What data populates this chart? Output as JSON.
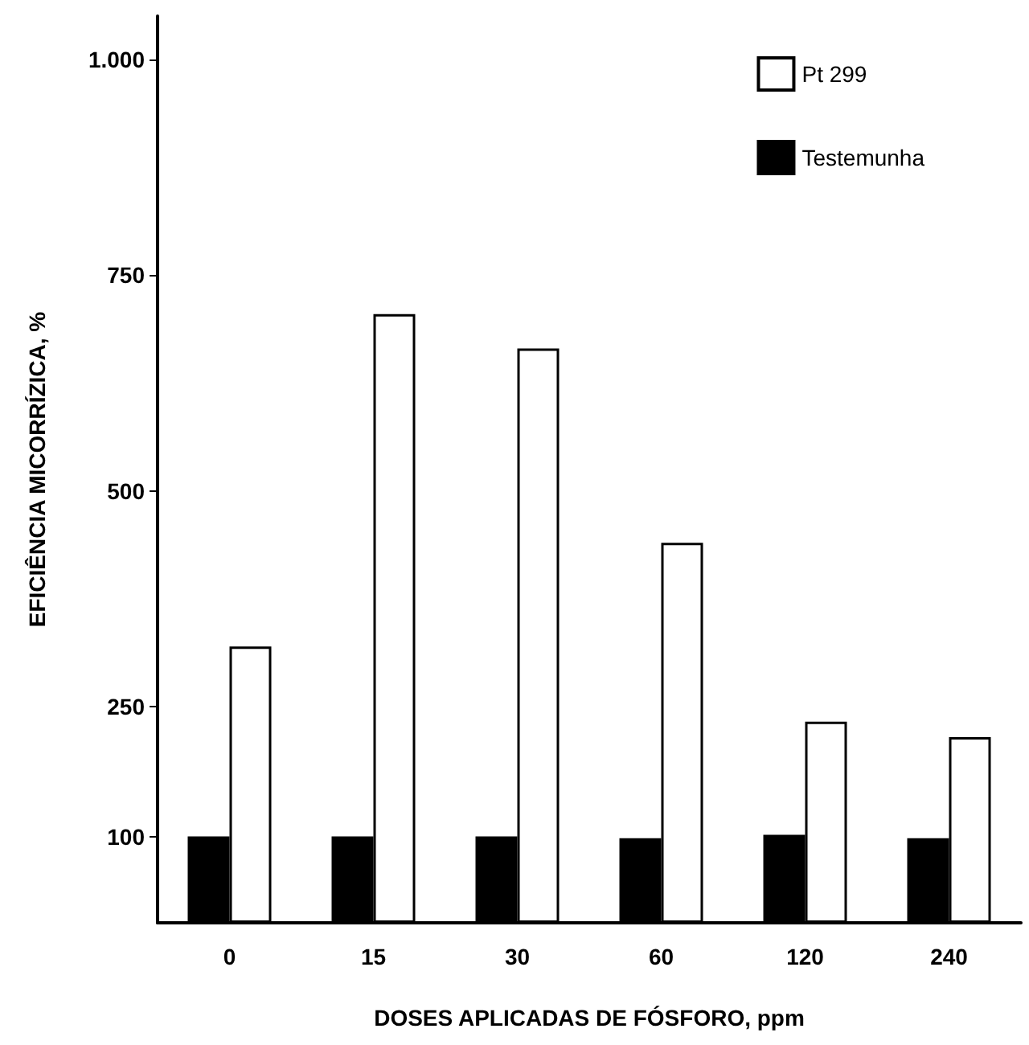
{
  "chart_data": {
    "type": "bar",
    "xlabel": "DOSES APLICADAS DE FÓSFORO, ppm",
    "ylabel": "EFICIÊNCIA MICORRÍZICA, %",
    "categories": [
      "0",
      "15",
      "30",
      "60",
      "120",
      "240"
    ],
    "series": [
      {
        "name": "Testemunha",
        "color": "#000000",
        "values": [
          100,
          100,
          100,
          98,
          102,
          98
        ]
      },
      {
        "name": "Pt 299",
        "color": "#ffffff",
        "values": [
          320,
          705,
          665,
          440,
          233,
          215
        ]
      }
    ],
    "ylim": [
      0,
      1050
    ],
    "yticks": [
      100,
      250,
      500,
      750,
      {
        "value": 1000,
        "label": "1.000"
      }
    ],
    "grid": false,
    "legend": "top right"
  }
}
